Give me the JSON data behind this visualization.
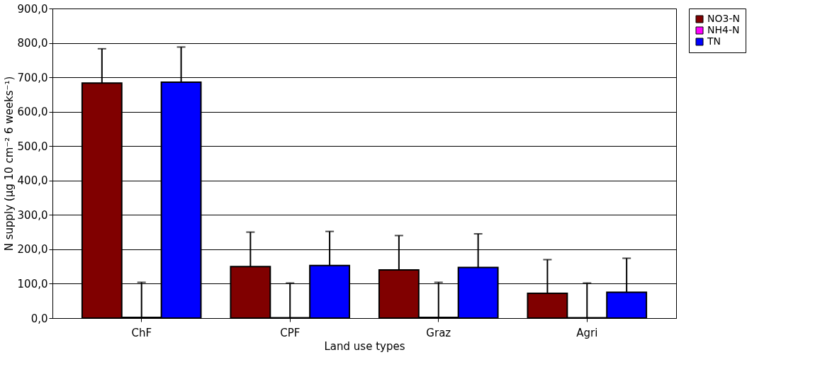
{
  "chart_data": {
    "type": "bar",
    "xlabel": "Land use types",
    "ylabel": "N supply (µg 10 cm⁻² 6 weeks⁻¹)",
    "categories": [
      "ChF",
      "CPF",
      "Graz",
      "Agri"
    ],
    "series": [
      {
        "name": "NO3-N",
        "color": "#800000",
        "values": [
          683,
          150,
          140,
          72
        ],
        "errors": [
          [
            683,
            783
          ],
          [
            150,
            250
          ],
          [
            140,
            240
          ],
          [
            72,
            170
          ]
        ]
      },
      {
        "name": "NH4-N",
        "color": "#ff00ff",
        "values": [
          2,
          1,
          2,
          1
        ],
        "errors": [
          [
            2,
            104
          ],
          [
            1,
            102
          ],
          [
            2,
            104
          ],
          [
            1,
            102
          ]
        ]
      },
      {
        "name": "TN",
        "color": "#0000ff",
        "values": [
          686,
          153,
          147,
          75
        ],
        "errors": [
          [
            686,
            788
          ],
          [
            153,
            252
          ],
          [
            147,
            245
          ],
          [
            75,
            174
          ]
        ]
      }
    ],
    "ylim": [
      0,
      900
    ],
    "yticks": [
      {
        "value": 0,
        "label": "0,0"
      },
      {
        "value": 100,
        "label": "100,0"
      },
      {
        "value": 200,
        "label": "200,0"
      },
      {
        "value": 300,
        "label": "300,0"
      },
      {
        "value": 400,
        "label": "400,0"
      },
      {
        "value": 500,
        "label": "500,0"
      },
      {
        "value": 600,
        "label": "600,0"
      },
      {
        "value": 700,
        "label": "700,0"
      },
      {
        "value": 800,
        "label": "800,0"
      },
      {
        "value": 900,
        "label": "900,0"
      }
    ],
    "grid": "y",
    "legend": "right"
  }
}
